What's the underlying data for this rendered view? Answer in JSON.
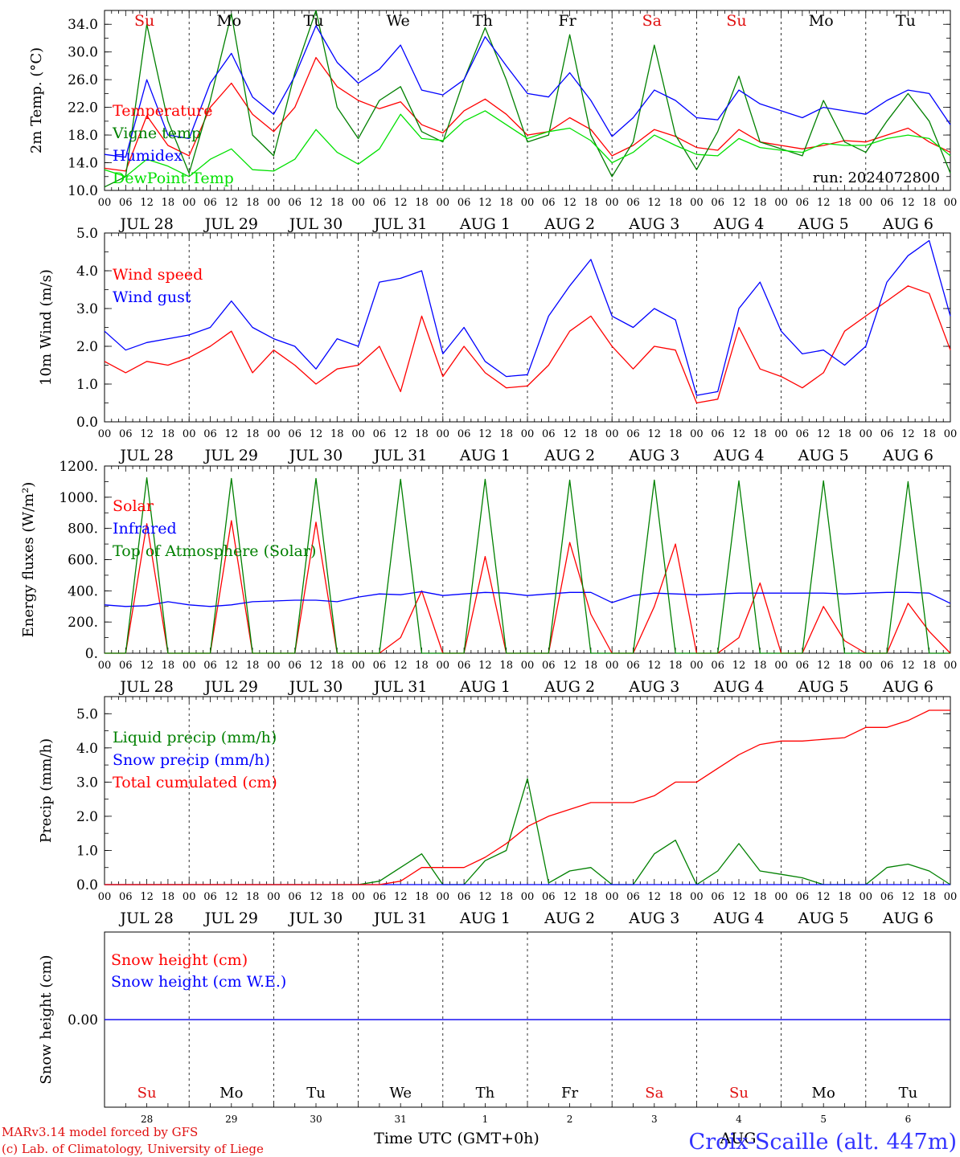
{
  "chart_data": {
    "type": "line",
    "run_label": "run: 2024072800",
    "hour_labels": [
      "00",
      "06",
      "12",
      "18"
    ],
    "date_labels": [
      "JUL 28",
      "JUL 29",
      "JUL 30",
      "JUL 31",
      "AUG  1",
      "AUG  2",
      "AUG  3",
      "AUG  4",
      "AUG  5",
      "AUG  6"
    ],
    "days": [
      {
        "label": "Su",
        "color": "#e01010"
      },
      {
        "label": "Mo",
        "color": "#000000"
      },
      {
        "label": "Tu",
        "color": "#000000"
      },
      {
        "label": "We",
        "color": "#000000"
      },
      {
        "label": "Th",
        "color": "#000000"
      },
      {
        "label": "Fr",
        "color": "#000000"
      },
      {
        "label": "Sa",
        "color": "#e01010"
      },
      {
        "label": "Su",
        "color": "#e01010"
      },
      {
        "label": "Mo",
        "color": "#000000"
      },
      {
        "label": "Tu",
        "color": "#000000"
      }
    ],
    "panels": [
      {
        "id": "temp",
        "ylabel": "2m Temp. (°C)",
        "ylim": [
          10,
          36
        ],
        "yticks": [
          10,
          14,
          18,
          22,
          26,
          30,
          34
        ],
        "ytick_labels": [
          "10.0",
          "14.0",
          "18.0",
          "22.0",
          "26.0",
          "30.0",
          "34.0"
        ],
        "x_hours": [
          0,
          6,
          12,
          18,
          24,
          30,
          36,
          42,
          48,
          54,
          60,
          66,
          72,
          78,
          84,
          90,
          96,
          102,
          108,
          114,
          120,
          126,
          132,
          138,
          144,
          150,
          156,
          162,
          168,
          174,
          180,
          186,
          192,
          198,
          204,
          210,
          216,
          222,
          228,
          234,
          240
        ],
        "series": [
          {
            "name": "Temperature",
            "color": "#ff0000",
            "values": [
              13.2,
              12.8,
              20.8,
              16.5,
              15.0,
              22.0,
              25.5,
              21.0,
              18.5,
              22.0,
              29.2,
              25.0,
              23.0,
              21.8,
              22.8,
              19.5,
              18.3,
              21.5,
              23.2,
              21.0,
              18.0,
              18.5,
              20.5,
              18.8,
              15.0,
              16.5,
              18.8,
              17.8,
              16.2,
              15.8,
              18.8,
              17.0,
              16.5,
              16.0,
              16.5,
              17.2,
              17.0,
              18.0,
              19.0,
              17.0,
              15.5
            ]
          },
          {
            "name": "Vigne temp",
            "color": "#008000",
            "values": [
              10.5,
              12.0,
              34.0,
              20.0,
              12.5,
              23.0,
              35.5,
              18.0,
              15.0,
              27.0,
              36.0,
              22.0,
              17.5,
              23.0,
              25.0,
              18.5,
              17.0,
              26.0,
              33.5,
              26.0,
              17.0,
              18.0,
              32.5,
              18.0,
              12.0,
              17.0,
              31.0,
              18.0,
              13.0,
              18.5,
              26.5,
              17.0,
              16.0,
              15.0,
              23.0,
              17.0,
              15.5,
              20.0,
              24.0,
              20.0,
              12.5
            ]
          },
          {
            "name": "Humidex",
            "color": "#0000ff",
            "values": [
              15.2,
              14.8,
              26.0,
              18.0,
              17.5,
              25.5,
              29.8,
              23.5,
              21.0,
              26.5,
              33.8,
              28.5,
              25.5,
              27.5,
              31.0,
              24.5,
              23.8,
              26.0,
              32.2,
              28.0,
              24.0,
              23.5,
              27.0,
              23.0,
              17.8,
              20.5,
              24.5,
              23.0,
              20.5,
              20.2,
              24.5,
              22.5,
              21.5,
              20.5,
              22.0,
              21.5,
              21.0,
              23.0,
              24.5,
              24.0,
              19.5
            ]
          },
          {
            "name": "DewPoint Temp",
            "color": "#00e000",
            "values": [
              13.0,
              12.0,
              14.5,
              13.5,
              12.0,
              14.5,
              16.0,
              13.0,
              12.8,
              14.5,
              18.8,
              15.5,
              13.8,
              16.0,
              21.0,
              17.5,
              17.2,
              20.0,
              21.5,
              19.5,
              17.5,
              18.5,
              19.0,
              17.2,
              14.0,
              15.5,
              18.0,
              16.5,
              15.2,
              15.0,
              17.5,
              16.2,
              15.8,
              15.5,
              16.8,
              16.5,
              16.5,
              17.5,
              18.0,
              17.5,
              15.0
            ]
          }
        ]
      },
      {
        "id": "wind",
        "ylabel": "10m Wind (m/s)",
        "ylim": [
          0,
          5
        ],
        "yticks": [
          0,
          1,
          2,
          3,
          4,
          5
        ],
        "ytick_labels": [
          "0.0",
          "1.0",
          "2.0",
          "3.0",
          "4.0",
          "5.0"
        ],
        "x_hours": [
          0,
          6,
          12,
          18,
          24,
          30,
          36,
          42,
          48,
          54,
          60,
          66,
          72,
          78,
          84,
          90,
          96,
          102,
          108,
          114,
          120,
          126,
          132,
          138,
          144,
          150,
          156,
          162,
          168,
          174,
          180,
          186,
          192,
          198,
          204,
          210,
          216,
          222,
          228,
          234,
          240
        ],
        "series": [
          {
            "name": "Wind speed",
            "color": "#ff0000",
            "values": [
              1.6,
              1.3,
              1.6,
              1.5,
              1.7,
              2.0,
              2.4,
              1.3,
              1.9,
              1.5,
              1.0,
              1.4,
              1.5,
              2.0,
              0.8,
              2.8,
              1.2,
              2.0,
              1.3,
              0.9,
              0.95,
              1.5,
              2.4,
              2.8,
              2.0,
              1.4,
              2.0,
              1.9,
              0.5,
              0.6,
              2.5,
              1.4,
              1.2,
              0.9,
              1.3,
              2.4,
              2.8,
              3.2,
              3.6,
              3.4,
              1.9
            ]
          },
          {
            "name": "Wind gust",
            "color": "#0000ff",
            "values": [
              2.4,
              1.9,
              2.1,
              2.2,
              2.3,
              2.5,
              3.2,
              2.5,
              2.2,
              2.0,
              1.4,
              2.2,
              2.0,
              3.7,
              3.8,
              4.0,
              1.8,
              2.5,
              1.6,
              1.2,
              1.25,
              2.8,
              3.6,
              4.3,
              2.8,
              2.5,
              3.0,
              2.7,
              0.7,
              0.8,
              3.0,
              3.7,
              2.4,
              1.8,
              1.9,
              1.5,
              2.0,
              3.7,
              4.4,
              4.8,
              2.8
            ]
          }
        ]
      },
      {
        "id": "energy",
        "ylabel": "Energy fluxes (W/m²)",
        "ylim": [
          0,
          1200
        ],
        "yticks": [
          0,
          200,
          400,
          600,
          800,
          1000,
          1200
        ],
        "ytick_labels": [
          "0.",
          "200.",
          "400.",
          "600.",
          "800.",
          "1000.",
          "1200."
        ],
        "x_hours": [
          0,
          6,
          12,
          18,
          24,
          30,
          36,
          42,
          48,
          54,
          60,
          66,
          72,
          78,
          84,
          90,
          96,
          102,
          108,
          114,
          120,
          126,
          132,
          138,
          144,
          150,
          156,
          162,
          168,
          174,
          180,
          186,
          192,
          198,
          204,
          210,
          216,
          222,
          228,
          234,
          240
        ],
        "series": [
          {
            "name": "Solar",
            "color": "#ff0000",
            "values": [
              0,
              0,
              830,
              0,
              0,
              0,
              850,
              0,
              0,
              0,
              840,
              0,
              0,
              0,
              100,
              400,
              0,
              0,
              620,
              0,
              0,
              0,
              710,
              250,
              0,
              0,
              300,
              700,
              0,
              0,
              100,
              450,
              0,
              0,
              300,
              80,
              0,
              0,
              320,
              140,
              0
            ]
          },
          {
            "name": "Infrared",
            "color": "#0000ff",
            "values": [
              310,
              300,
              305,
              330,
              310,
              300,
              310,
              330,
              335,
              340,
              340,
              330,
              360,
              380,
              375,
              395,
              370,
              380,
              390,
              385,
              370,
              380,
              390,
              390,
              325,
              370,
              385,
              380,
              375,
              380,
              385,
              385,
              385,
              385,
              385,
              380,
              385,
              390,
              390,
              385,
              320
            ]
          },
          {
            "name": "Top of Atmosphere (Solar)",
            "color": "#008000",
            "values": [
              0,
              0,
              1125,
              0,
              0,
              0,
              1120,
              0,
              0,
              0,
              1120,
              0,
              0,
              0,
              1115,
              0,
              0,
              0,
              1115,
              0,
              0,
              0,
              1110,
              0,
              0,
              0,
              1110,
              0,
              0,
              0,
              1105,
              0,
              0,
              0,
              1105,
              0,
              0,
              0,
              1100,
              0,
              0
            ]
          }
        ]
      },
      {
        "id": "precip",
        "ylabel": "Precip (mm/h)",
        "ylim": [
          0,
          5.5
        ],
        "yticks": [
          0,
          1,
          2,
          3,
          4,
          5
        ],
        "ytick_labels": [
          "0.0",
          "1.0",
          "2.0",
          "3.0",
          "4.0",
          "5.0"
        ],
        "x_hours": [
          0,
          6,
          12,
          18,
          24,
          30,
          36,
          42,
          48,
          54,
          60,
          66,
          72,
          78,
          84,
          90,
          96,
          102,
          108,
          114,
          120,
          126,
          132,
          138,
          144,
          150,
          156,
          162,
          168,
          174,
          180,
          186,
          192,
          198,
          204,
          210,
          216,
          222,
          228,
          234,
          240
        ],
        "series": [
          {
            "name": "Liquid precip (mm/h)",
            "color": "#008000",
            "values": [
              0,
              0,
              0,
              0,
              0,
              0,
              0,
              0,
              0,
              0,
              0,
              0,
              0,
              0.1,
              0.5,
              0.9,
              0,
              0,
              0.7,
              1.0,
              3.1,
              0.05,
              0.4,
              0.5,
              0,
              0,
              0.9,
              1.3,
              0,
              0.4,
              1.2,
              0.4,
              0.3,
              0.2,
              0,
              0,
              0,
              0.5,
              0.6,
              0.4,
              0
            ]
          },
          {
            "name": "Snow precip (mm/h)",
            "color": "#0000ff",
            "values": [
              0,
              0,
              0,
              0,
              0,
              0,
              0,
              0,
              0,
              0,
              0,
              0,
              0,
              0,
              0,
              0,
              0,
              0,
              0,
              0,
              0,
              0,
              0,
              0,
              0,
              0,
              0,
              0,
              0,
              0,
              0,
              0,
              0,
              0,
              0,
              0,
              0,
              0,
              0,
              0,
              0
            ]
          },
          {
            "name": "Total cumulated (cm)",
            "color": "#ff0000",
            "values": [
              0,
              0,
              0,
              0,
              0,
              0,
              0,
              0,
              0,
              0,
              0,
              0,
              0,
              0,
              0.1,
              0.5,
              0.5,
              0.5,
              0.8,
              1.2,
              1.7,
              2.0,
              2.2,
              2.4,
              2.4,
              2.4,
              2.6,
              3.0,
              3.0,
              3.4,
              3.8,
              4.1,
              4.2,
              4.2,
              4.25,
              4.3,
              4.6,
              4.6,
              4.8,
              5.1,
              5.1
            ]
          }
        ]
      },
      {
        "id": "snow",
        "ylabel": "Snow height (cm)",
        "ylim": [
          -1,
          1
        ],
        "yticks": [
          0
        ],
        "ytick_labels": [
          "0.00"
        ],
        "x_hours": [
          0,
          240
        ],
        "series": [
          {
            "name": "Snow height (cm)",
            "color": "#ff0000",
            "values": [
              0,
              0
            ]
          },
          {
            "name": "Snow height (cm W.E.)",
            "color": "#0000ff",
            "values": [
              0,
              0
            ]
          }
        ]
      }
    ],
    "bottom": {
      "day_numbers": [
        "28",
        "29",
        "30",
        "31",
        "1",
        "2",
        "3",
        "4",
        "5",
        "6"
      ],
      "xlabel": "Time UTC (GMT+0h)",
      "month_label": "AUG",
      "credit_line1": "MARv3.14 model forced by GFS",
      "credit_line2": "(c) Lab. of Climatology, University of Liege",
      "station": "Croix-Scaille (alt. 447m)"
    }
  }
}
